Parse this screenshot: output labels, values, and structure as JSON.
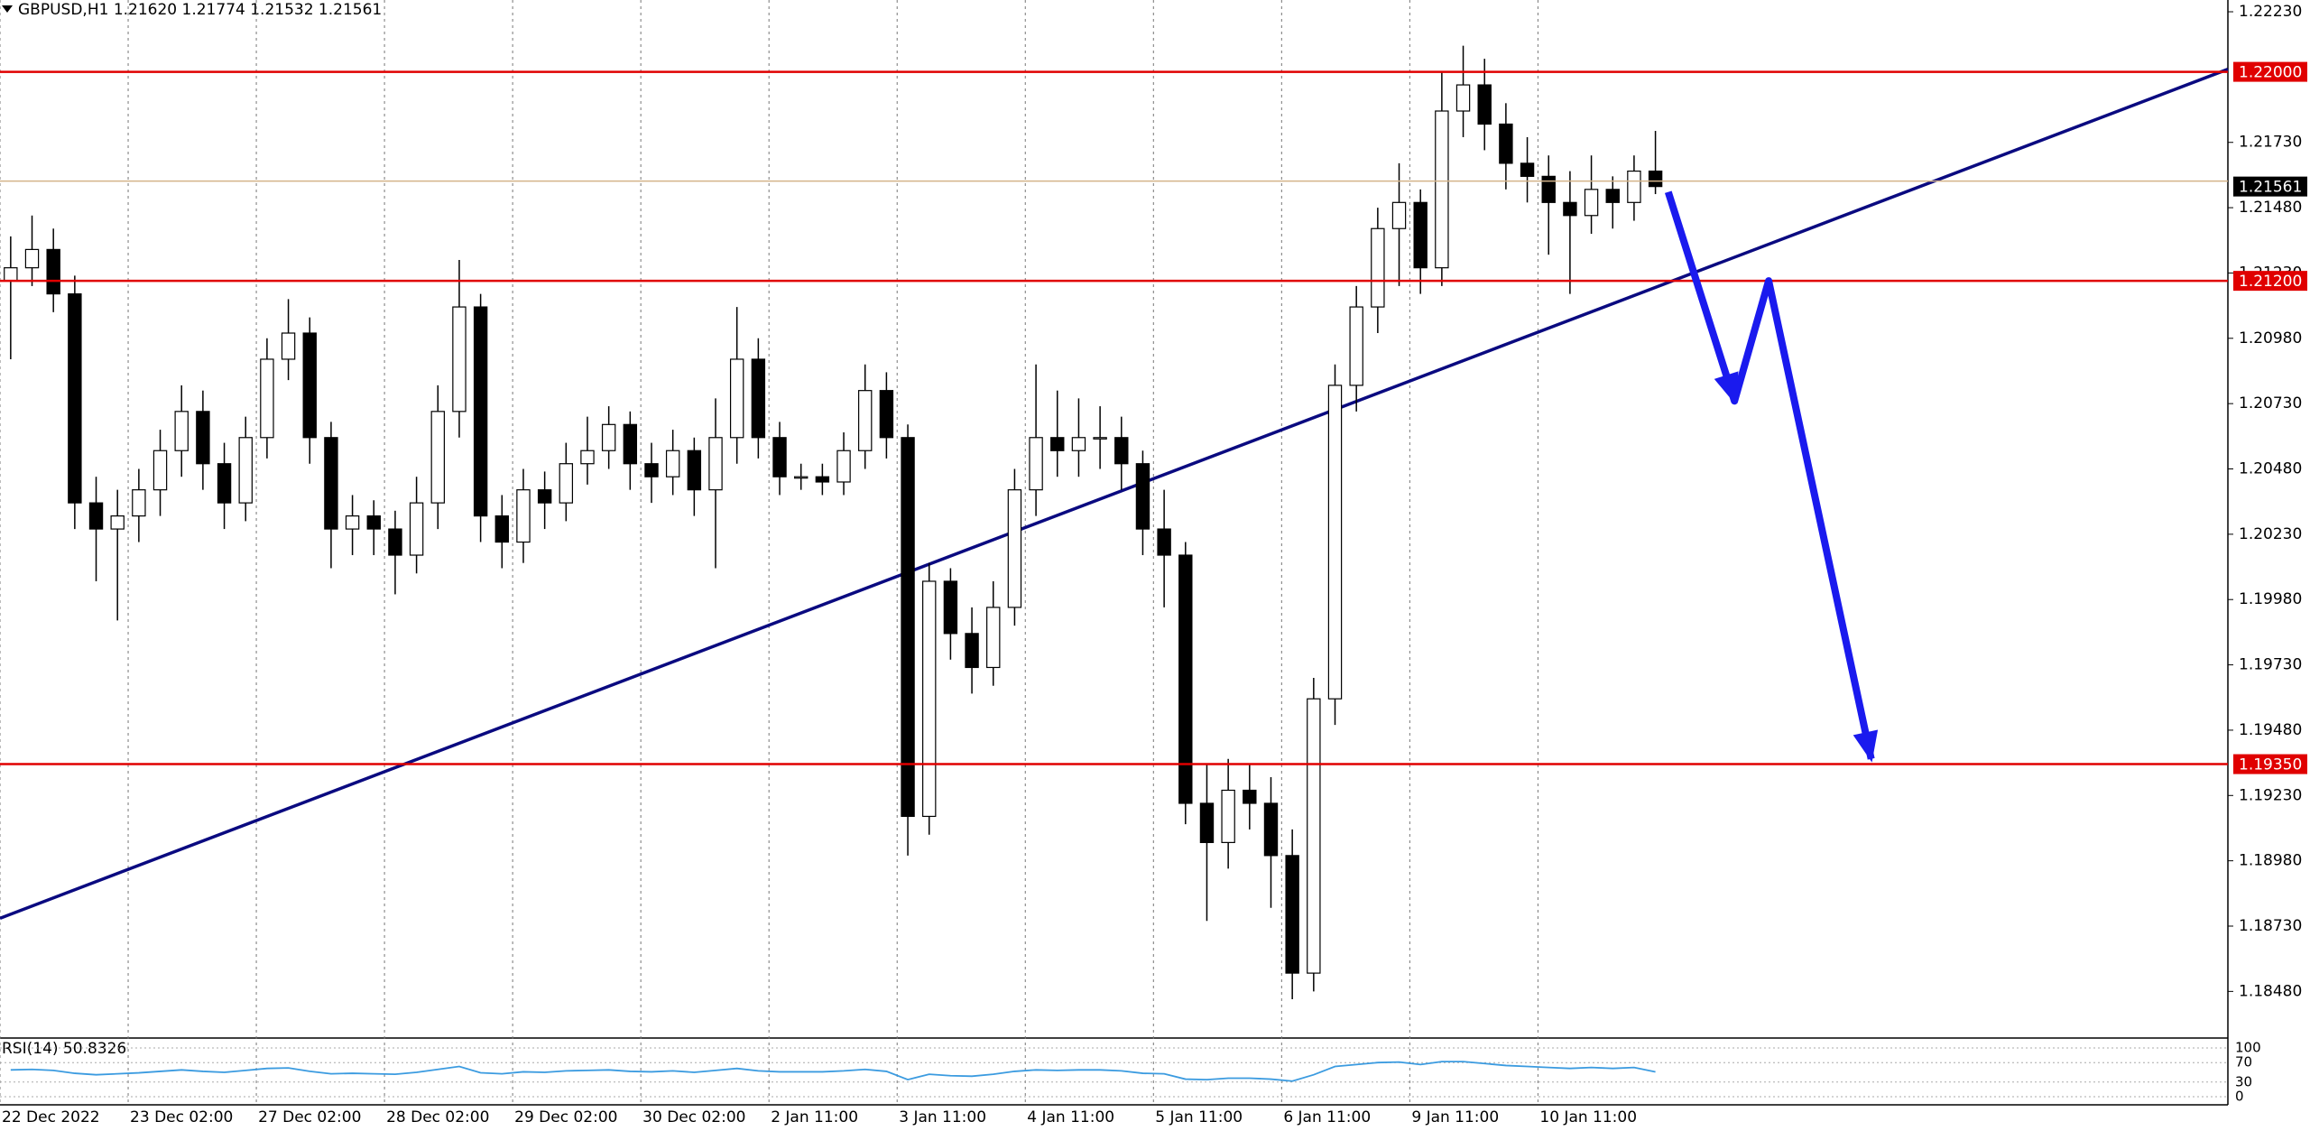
{
  "chart_data": {
    "type": "candlestick",
    "title": "GBPUSD,H1  1.21620 1.21774 1.21532 1.21561",
    "grid": true,
    "xlim": [
      0,
      104.3
    ],
    "ylim": [
      1.18305,
      1.22275
    ],
    "xticks": [
      {
        "value": 0,
        "label": "22 Dec 2022"
      },
      {
        "value": 6,
        "label": "23 Dec 02:00"
      },
      {
        "value": 12,
        "label": "27 Dec 02:00"
      },
      {
        "value": 18,
        "label": "28 Dec 02:00"
      },
      {
        "value": 24,
        "label": "29 Dec 02:00"
      },
      {
        "value": 30,
        "label": "30 Dec 02:00"
      },
      {
        "value": 36,
        "label": "2 Jan 11:00"
      },
      {
        "value": 42,
        "label": "3 Jan 11:00"
      },
      {
        "value": 48,
        "label": "4 Jan 11:00"
      },
      {
        "value": 54,
        "label": "5 Jan 11:00"
      },
      {
        "value": 60,
        "label": "6 Jan 11:00"
      },
      {
        "value": 66,
        "label": "9 Jan 11:00"
      },
      {
        "value": 72,
        "label": "10 Jan 11:00"
      }
    ],
    "yticks": [
      {
        "value": 1.2223,
        "label": "1.22230"
      },
      {
        "value": 1.2173,
        "label": "1.21730"
      },
      {
        "value": 1.2148,
        "label": "1.21480"
      },
      {
        "value": 1.2123,
        "label": "1.21230"
      },
      {
        "value": 1.2098,
        "label": "1.20980"
      },
      {
        "value": 1.2073,
        "label": "1.20730"
      },
      {
        "value": 1.2048,
        "label": "1.20480"
      },
      {
        "value": 1.2023,
        "label": "1.20230"
      },
      {
        "value": 1.1998,
        "label": "1.19980"
      },
      {
        "value": 1.1973,
        "label": "1.19730"
      },
      {
        "value": 1.1948,
        "label": "1.19480"
      },
      {
        "value": 1.1923,
        "label": "1.19230"
      },
      {
        "value": 1.1898,
        "label": "1.18980"
      },
      {
        "value": 1.1873,
        "label": "1.18730"
      },
      {
        "value": 1.1848,
        "label": "1.18480"
      }
    ],
    "open": [
      1.212,
      1.2125,
      1.2132,
      1.2115,
      1.2035,
      1.2025,
      1.203,
      1.204,
      1.2055,
      1.207,
      1.205,
      1.2035,
      1.206,
      1.209,
      1.21,
      1.206,
      1.2025,
      1.203,
      1.2025,
      1.2015,
      1.2035,
      1.207,
      1.211,
      1.203,
      1.202,
      1.204,
      1.2035,
      1.205,
      1.2055,
      1.2065,
      1.205,
      1.2045,
      1.2055,
      1.204,
      1.206,
      1.209,
      1.206,
      1.2045,
      1.2045,
      1.2043,
      1.2055,
      1.2078,
      1.206,
      1.1915,
      1.2005,
      1.1985,
      1.1972,
      1.1995,
      1.204,
      1.206,
      1.2055,
      1.206,
      1.206,
      1.205,
      1.2025,
      1.2015,
      1.192,
      1.1905,
      1.1925,
      1.192,
      1.19,
      1.1855,
      1.196,
      1.208,
      1.211,
      1.214,
      1.215,
      1.2125,
      1.2185,
      1.2195,
      1.218,
      1.2165,
      1.216,
      1.215,
      1.2145,
      1.2155,
      1.215,
      1.2162
    ],
    "high": [
      1.2137,
      1.2145,
      1.214,
      1.2122,
      1.2045,
      1.204,
      1.2048,
      1.2063,
      1.208,
      1.2078,
      1.2058,
      1.2068,
      1.2098,
      1.2113,
      1.2106,
      1.2066,
      1.2038,
      1.2036,
      1.2032,
      1.2045,
      1.208,
      1.2128,
      1.2115,
      1.2038,
      1.2048,
      1.2047,
      1.2058,
      1.2068,
      1.2072,
      1.207,
      1.2058,
      1.2063,
      1.206,
      1.2075,
      1.211,
      1.2098,
      1.2066,
      1.205,
      1.205,
      1.2062,
      1.2088,
      1.2085,
      1.2065,
      1.2012,
      1.201,
      1.1995,
      1.2005,
      1.2048,
      1.2088,
      1.2078,
      1.2075,
      1.2072,
      1.2068,
      1.2055,
      1.204,
      1.202,
      1.1935,
      1.1937,
      1.1935,
      1.193,
      1.191,
      1.1968,
      1.2088,
      1.2118,
      1.2148,
      1.2165,
      1.2155,
      1.22,
      1.221,
      1.2205,
      1.2188,
      1.2175,
      1.2168,
      1.2162,
      1.2168,
      1.216,
      1.2168,
      1.21774
    ],
    "low": [
      1.209,
      1.2118,
      1.2108,
      1.2025,
      1.2005,
      1.199,
      1.202,
      1.203,
      1.2045,
      1.204,
      1.2025,
      1.2028,
      1.2052,
      1.2082,
      1.205,
      1.201,
      1.2015,
      1.2015,
      1.2,
      1.2008,
      1.2025,
      1.206,
      1.202,
      1.201,
      1.2012,
      1.2025,
      1.2028,
      1.2042,
      1.2048,
      1.204,
      1.2035,
      1.2038,
      1.203,
      1.201,
      1.205,
      1.2052,
      1.2038,
      1.204,
      1.2038,
      1.2038,
      1.2048,
      1.2052,
      1.19,
      1.1908,
      1.1975,
      1.1962,
      1.1965,
      1.1988,
      1.203,
      1.2045,
      1.2045,
      1.2048,
      1.204,
      1.2015,
      1.1995,
      1.1912,
      1.1875,
      1.1895,
      1.191,
      1.188,
      1.1845,
      1.1848,
      1.195,
      1.207,
      1.21,
      1.2118,
      1.2115,
      1.2118,
      1.2175,
      1.217,
      1.2155,
      1.215,
      1.213,
      1.2115,
      1.2138,
      1.214,
      1.2143,
      1.21532
    ],
    "close": [
      1.2125,
      1.2132,
      1.2115,
      1.2035,
      1.2025,
      1.203,
      1.204,
      1.2055,
      1.207,
      1.205,
      1.2035,
      1.206,
      1.209,
      1.21,
      1.206,
      1.2025,
      1.203,
      1.2025,
      1.2015,
      1.2035,
      1.207,
      1.211,
      1.203,
      1.202,
      1.204,
      1.2035,
      1.205,
      1.2055,
      1.2065,
      1.205,
      1.2045,
      1.2055,
      1.204,
      1.206,
      1.209,
      1.206,
      1.2045,
      1.2045,
      1.2043,
      1.2055,
      1.2078,
      1.206,
      1.1915,
      1.2005,
      1.1985,
      1.1972,
      1.1995,
      1.204,
      1.206,
      1.2055,
      1.206,
      1.206,
      1.205,
      1.2025,
      1.2015,
      1.192,
      1.1905,
      1.1925,
      1.192,
      1.19,
      1.1855,
      1.196,
      1.208,
      1.211,
      1.214,
      1.215,
      1.2125,
      1.2185,
      1.2195,
      1.218,
      1.2165,
      1.216,
      1.215,
      1.2145,
      1.2155,
      1.215,
      1.2162,
      1.21561
    ],
    "levels": [
      {
        "value": 1.22,
        "label": "1.22000",
        "color": "#e00000"
      },
      {
        "value": 1.212,
        "label": "1.21200",
        "color": "#e00000"
      },
      {
        "value": 1.1935,
        "label": "1.19350",
        "color": "#e00000"
      }
    ],
    "current_price": {
      "value": 1.21561,
      "label": "1.21561",
      "color": "#000000"
    },
    "trend_line": {
      "color": "#0a0a80",
      "x": [
        0,
        104.3
      ],
      "y": [
        1.1876,
        1.2201
      ]
    },
    "forecast": {
      "color": "#1a1aee",
      "x": [
        78.1,
        81.2,
        82.8,
        87.6
      ],
      "y": [
        1.2154,
        1.2074,
        1.212,
        1.1937
      ]
    },
    "rsi": {
      "label": "RSI(14) 50.8326",
      "ylim": [
        0,
        100
      ],
      "yticks": [
        100,
        70,
        30,
        0
      ],
      "color": "#3b9be0",
      "values": [
        55,
        56,
        54,
        48,
        45,
        47,
        49,
        52,
        55,
        52,
        50,
        54,
        58,
        59,
        52,
        47,
        48,
        47,
        46,
        50,
        56,
        62,
        49,
        47,
        51,
        50,
        53,
        54,
        55,
        52,
        51,
        53,
        50,
        54,
        58,
        53,
        51,
        51,
        51,
        53,
        56,
        52,
        35,
        46,
        43,
        42,
        46,
        52,
        55,
        54,
        55,
        55,
        53,
        48,
        47,
        36,
        35,
        38,
        38,
        36,
        32,
        45,
        62,
        66,
        70,
        71,
        66,
        72,
        72,
        68,
        64,
        62,
        60,
        58,
        60,
        58,
        60,
        51
      ]
    }
  }
}
